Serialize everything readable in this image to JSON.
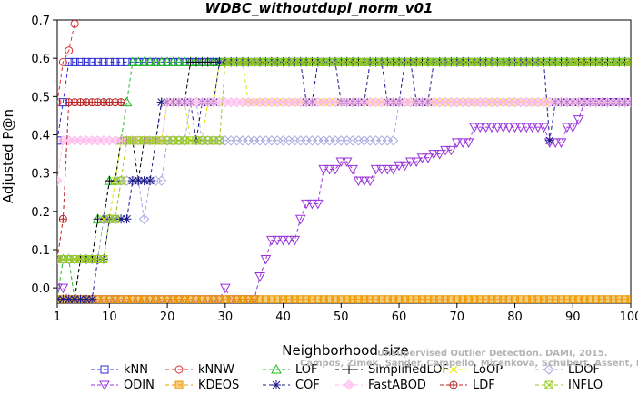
{
  "chart_data": {
    "type": "line",
    "title": "WDBC_withoutdupl_norm_v01",
    "xlabel": "Neighborhood size",
    "ylabel": "Adjusted P@n",
    "xlim": [
      1,
      100
    ],
    "ylim": [
      -0.04,
      0.7
    ],
    "xticks": [
      1,
      10,
      20,
      30,
      40,
      50,
      60,
      70,
      80,
      90,
      100
    ],
    "yticks": [
      0.0,
      0.1,
      0.2,
      0.3,
      0.4,
      0.5,
      0.6,
      0.7
    ],
    "grid": false,
    "legend_position": "bottom",
    "watermark": [
      "Unsupervised Outlier Detection. DAMI, 2015.",
      "Campos, Zimek, Sander, Campello, Micenkova, Schubert, Assent, Houle"
    ],
    "series": [
      {
        "name": "kNN",
        "color": "#2b2bd6",
        "marker": "square",
        "points": [
          [
            1,
            0.385
          ],
          [
            2,
            0.485
          ],
          [
            3,
            0.59
          ],
          [
            4,
            0.59
          ],
          [
            10,
            0.59
          ],
          [
            20,
            0.59
          ],
          [
            30,
            0.59
          ],
          [
            40,
            0.59
          ],
          [
            50,
            0.59
          ],
          [
            60,
            0.59
          ],
          [
            70,
            0.59
          ],
          [
            80,
            0.59
          ],
          [
            90,
            0.59
          ],
          [
            100,
            0.59
          ]
        ]
      },
      {
        "name": "kNNW",
        "color": "#e03030",
        "marker": "circle",
        "points": [
          [
            1,
            0.485
          ],
          [
            2,
            0.59
          ],
          [
            3,
            0.62
          ],
          [
            4,
            0.69
          ]
        ]
      },
      {
        "name": "LOF",
        "color": "#22bb22",
        "marker": "triangle-up",
        "points": [
          [
            1,
            -0.03
          ],
          [
            2,
            0.075
          ],
          [
            3,
            0.075
          ],
          [
            4,
            -0.03
          ],
          [
            5,
            0.075
          ],
          [
            6,
            0.075
          ],
          [
            7,
            0.075
          ],
          [
            8,
            0.18
          ],
          [
            9,
            0.18
          ],
          [
            10,
            0.28
          ],
          [
            11,
            0.28
          ],
          [
            12,
            0.385
          ],
          [
            13,
            0.485
          ],
          [
            14,
            0.59
          ],
          [
            20,
            0.59
          ],
          [
            30,
            0.59
          ],
          [
            40,
            0.59
          ],
          [
            50,
            0.59
          ],
          [
            60,
            0.59
          ],
          [
            70,
            0.59
          ],
          [
            80,
            0.59
          ],
          [
            90,
            0.59
          ],
          [
            100,
            0.59
          ]
        ]
      },
      {
        "name": "SimplifiedLOF",
        "color": "#000000",
        "marker": "plus",
        "points": [
          [
            1,
            -0.03
          ],
          [
            3,
            -0.03
          ],
          [
            5,
            0.075
          ],
          [
            7,
            0.075
          ],
          [
            8,
            0.18
          ],
          [
            9,
            0.18
          ],
          [
            10,
            0.28
          ],
          [
            11,
            0.28
          ],
          [
            12,
            0.385
          ],
          [
            14,
            0.385
          ],
          [
            15,
            0.28
          ],
          [
            16,
            0.385
          ],
          [
            18,
            0.385
          ],
          [
            19,
            0.485
          ],
          [
            23,
            0.485
          ],
          [
            24,
            0.59
          ],
          [
            30,
            0.59
          ],
          [
            40,
            0.59
          ],
          [
            50,
            0.59
          ],
          [
            60,
            0.59
          ],
          [
            70,
            0.59
          ],
          [
            80,
            0.59
          ],
          [
            90,
            0.59
          ],
          [
            100,
            0.59
          ]
        ]
      },
      {
        "name": "LoOP",
        "color": "#e5e500",
        "marker": "x",
        "points": [
          [
            1,
            0.075
          ],
          [
            4,
            0.075
          ],
          [
            8,
            0.075
          ],
          [
            9,
            0.18
          ],
          [
            11,
            0.28
          ],
          [
            12,
            0.385
          ],
          [
            16,
            0.385
          ],
          [
            18,
            0.385
          ],
          [
            20,
            0.485
          ],
          [
            22,
            0.485
          ],
          [
            24,
            0.385
          ],
          [
            25,
            0.385
          ],
          [
            27,
            0.485
          ],
          [
            29,
            0.59
          ],
          [
            30,
            0.59
          ],
          [
            34,
            0.485
          ],
          [
            40,
            0.485
          ],
          [
            46,
            0.485
          ],
          [
            50,
            0.485
          ],
          [
            53,
            0.485
          ],
          [
            60,
            0.485
          ],
          [
            64,
            0.485
          ],
          [
            66,
            0.485
          ],
          [
            70,
            0.485
          ],
          [
            75,
            0.485
          ],
          [
            80,
            0.485
          ],
          [
            85,
            0.485
          ],
          [
            90,
            0.485
          ],
          [
            100,
            0.485
          ]
        ]
      },
      {
        "name": "LDOF",
        "color": "#a8a8e0",
        "marker": "diamond",
        "points": [
          [
            1,
            0.075
          ],
          [
            5,
            0.075
          ],
          [
            9,
            0.18
          ],
          [
            12,
            0.28
          ],
          [
            15,
            0.28
          ],
          [
            16,
            0.18
          ],
          [
            17,
            0.28
          ],
          [
            19,
            0.28
          ],
          [
            20,
            0.385
          ],
          [
            22,
            0.385
          ],
          [
            24,
            0.485
          ],
          [
            26,
            0.385
          ],
          [
            30,
            0.385
          ],
          [
            40,
            0.385
          ],
          [
            50,
            0.385
          ],
          [
            58,
            0.385
          ],
          [
            60,
            0.485
          ],
          [
            70,
            0.485
          ],
          [
            80,
            0.485
          ],
          [
            90,
            0.485
          ],
          [
            100,
            0.485
          ]
        ]
      },
      {
        "name": "ODIN",
        "color": "#9933dd",
        "marker": "triangle-down",
        "points": [
          [
            1,
            0.0
          ],
          [
            2,
            0.0
          ],
          [
            3,
            -0.03
          ],
          [
            10,
            -0.03
          ],
          [
            20,
            -0.03
          ],
          [
            29,
            -0.03
          ],
          [
            30,
            0.0
          ],
          [
            31,
            -0.03
          ],
          [
            35,
            -0.03
          ],
          [
            36,
            0.03
          ],
          [
            37,
            0.075
          ],
          [
            38,
            0.125
          ],
          [
            42,
            0.125
          ],
          [
            43,
            0.18
          ],
          [
            44,
            0.22
          ],
          [
            46,
            0.22
          ],
          [
            47,
            0.31
          ],
          [
            49,
            0.31
          ],
          [
            50,
            0.33
          ],
          [
            51,
            0.33
          ],
          [
            52,
            0.31
          ],
          [
            53,
            0.28
          ],
          [
            55,
            0.28
          ],
          [
            56,
            0.31
          ],
          [
            60,
            0.32
          ],
          [
            62,
            0.33
          ],
          [
            64,
            0.34
          ],
          [
            66,
            0.35
          ],
          [
            68,
            0.36
          ],
          [
            70,
            0.38
          ],
          [
            73,
            0.42
          ],
          [
            80,
            0.42
          ],
          [
            85,
            0.42
          ],
          [
            86,
            0.38
          ],
          [
            88,
            0.38
          ],
          [
            89,
            0.42
          ],
          [
            91,
            0.44
          ],
          [
            92,
            0.485
          ],
          [
            100,
            0.485
          ]
        ]
      },
      {
        "name": "KDEOS",
        "color": "#ee9900",
        "marker": "box",
        "points": [
          [
            1,
            -0.03
          ],
          [
            10,
            -0.03
          ],
          [
            20,
            -0.03
          ],
          [
            30,
            -0.03
          ],
          [
            40,
            -0.03
          ],
          [
            50,
            -0.03
          ],
          [
            60,
            -0.03
          ],
          [
            70,
            -0.03
          ],
          [
            80,
            -0.03
          ],
          [
            90,
            -0.03
          ],
          [
            100,
            -0.03
          ]
        ]
      },
      {
        "name": "COF",
        "color": "#1a1a8a",
        "marker": "asterisk",
        "points": [
          [
            1,
            -0.03
          ],
          [
            5,
            -0.03
          ],
          [
            8,
            0.075
          ],
          [
            9,
            0.075
          ],
          [
            10,
            0.18
          ],
          [
            13,
            0.18
          ],
          [
            14,
            0.28
          ],
          [
            17,
            0.28
          ],
          [
            18,
            0.385
          ],
          [
            19,
            0.485
          ],
          [
            24,
            0.485
          ],
          [
            25,
            0.385
          ],
          [
            26,
            0.485
          ],
          [
            29,
            0.59
          ],
          [
            40,
            0.59
          ],
          [
            44,
            0.485
          ],
          [
            46,
            0.59
          ],
          [
            50,
            0.485
          ],
          [
            55,
            0.59
          ],
          [
            58,
            0.485
          ],
          [
            61,
            0.59
          ],
          [
            63,
            0.485
          ],
          [
            66,
            0.59
          ],
          [
            70,
            0.59
          ],
          [
            86,
            0.385
          ],
          [
            87,
            0.485
          ],
          [
            90,
            0.485
          ],
          [
            100,
            0.485
          ]
        ]
      },
      {
        "name": "FastABOD",
        "color": "#ffbbee",
        "marker": "diamond-filled",
        "points": [
          [
            1,
            0.28
          ],
          [
            2,
            0.385
          ],
          [
            10,
            0.385
          ],
          [
            20,
            0.485
          ],
          [
            30,
            0.485
          ],
          [
            40,
            0.485
          ],
          [
            50,
            0.485
          ],
          [
            60,
            0.485
          ],
          [
            70,
            0.485
          ],
          [
            80,
            0.485
          ],
          [
            90,
            0.485
          ],
          [
            100,
            0.485
          ]
        ]
      },
      {
        "name": "LDF",
        "color": "#bb2222",
        "marker": "circle-plus",
        "points": [
          [
            1,
            0.075
          ],
          [
            2,
            0.18
          ],
          [
            3,
            0.485
          ],
          [
            4,
            0.485
          ],
          [
            6,
            0.485
          ],
          [
            8,
            0.485
          ],
          [
            10,
            0.485
          ],
          [
            12,
            0.485
          ]
        ]
      },
      {
        "name": "INFLO",
        "color": "#99cc22",
        "marker": "box-x",
        "points": [
          [
            1,
            0.075
          ],
          [
            4,
            0.075
          ],
          [
            8,
            0.075
          ],
          [
            10,
            0.18
          ],
          [
            12,
            0.28
          ],
          [
            13,
            0.385
          ],
          [
            20,
            0.385
          ],
          [
            25,
            0.385
          ],
          [
            28,
            0.385
          ],
          [
            29,
            0.385
          ],
          [
            30,
            0.59
          ],
          [
            40,
            0.59
          ],
          [
            50,
            0.59
          ],
          [
            60,
            0.59
          ],
          [
            70,
            0.59
          ],
          [
            80,
            0.59
          ],
          [
            90,
            0.59
          ],
          [
            100,
            0.59
          ]
        ]
      }
    ]
  }
}
